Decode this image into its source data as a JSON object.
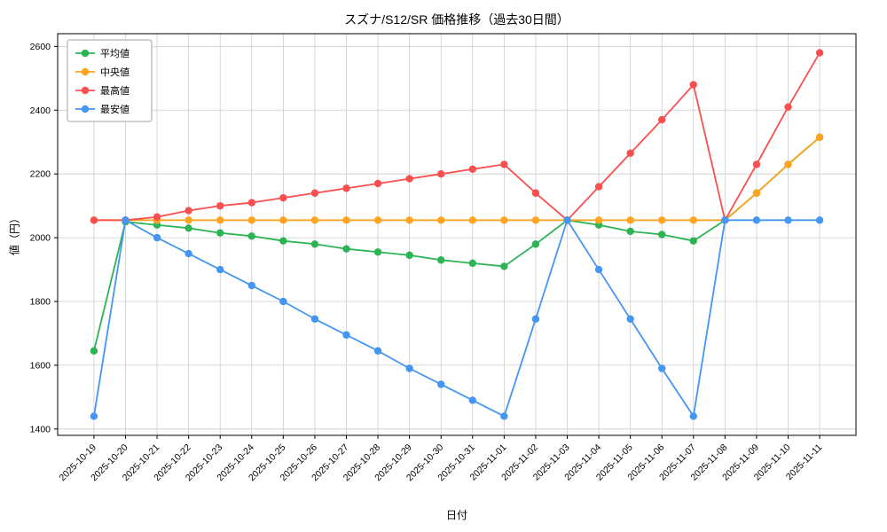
{
  "chart_data": {
    "type": "line",
    "title": "スズナ/S12/SR 価格推移（過去30日間）",
    "xlabel": "日付",
    "ylabel": "値（円）",
    "grid": true,
    "legend_position": "upper-left",
    "marker": "circle",
    "y_ticks": [
      1400,
      1600,
      1800,
      2000,
      2200,
      2400,
      2600
    ],
    "ylim": [
      1380,
      2640
    ],
    "categories": [
      "2025-10-19",
      "2025-10-20",
      "2025-10-21",
      "2025-10-22",
      "2025-10-23",
      "2025-10-24",
      "2025-10-25",
      "2025-10-26",
      "2025-10-27",
      "2025-10-28",
      "2025-10-29",
      "2025-10-30",
      "2025-10-31",
      "2025-11-01",
      "2025-11-02",
      "2025-11-03",
      "2025-11-04",
      "2025-11-05",
      "2025-11-06",
      "2025-11-07",
      "2025-11-08",
      "2025-11-09",
      "2025-11-10",
      "2025-11-11"
    ],
    "series": [
      {
        "name": "平均値",
        "color": "#2cb454",
        "values": [
          1645,
          2050,
          2040,
          2030,
          2015,
          2005,
          1990,
          1980,
          1965,
          1955,
          1945,
          1930,
          1920,
          1910,
          1980,
          2055,
          2040,
          2020,
          2010,
          1990,
          2055,
          2140,
          2230,
          2315
        ]
      },
      {
        "name": "中央値",
        "color": "#ffa321",
        "values": [
          2055,
          2055,
          2055,
          2055,
          2055,
          2055,
          2055,
          2055,
          2055,
          2055,
          2055,
          2055,
          2055,
          2055,
          2055,
          2055,
          2055,
          2055,
          2055,
          2055,
          2055,
          2140,
          2230,
          2315
        ]
      },
      {
        "name": "最高値",
        "color": "#f94f4f",
        "values": [
          2055,
          2055,
          2065,
          2085,
          2100,
          2110,
          2125,
          2140,
          2155,
          2170,
          2185,
          2200,
          2215,
          2230,
          2140,
          2055,
          2160,
          2265,
          2370,
          2480,
          2055,
          2230,
          2410,
          2580
        ]
      },
      {
        "name": "最安値",
        "color": "#4595f2",
        "values": [
          1440,
          2055,
          2000,
          1950,
          1900,
          1850,
          1800,
          1745,
          1695,
          1645,
          1590,
          1540,
          1490,
          1440,
          1745,
          2055,
          1900,
          1745,
          1590,
          1440,
          2055,
          2055,
          2055,
          2055
        ]
      }
    ]
  }
}
